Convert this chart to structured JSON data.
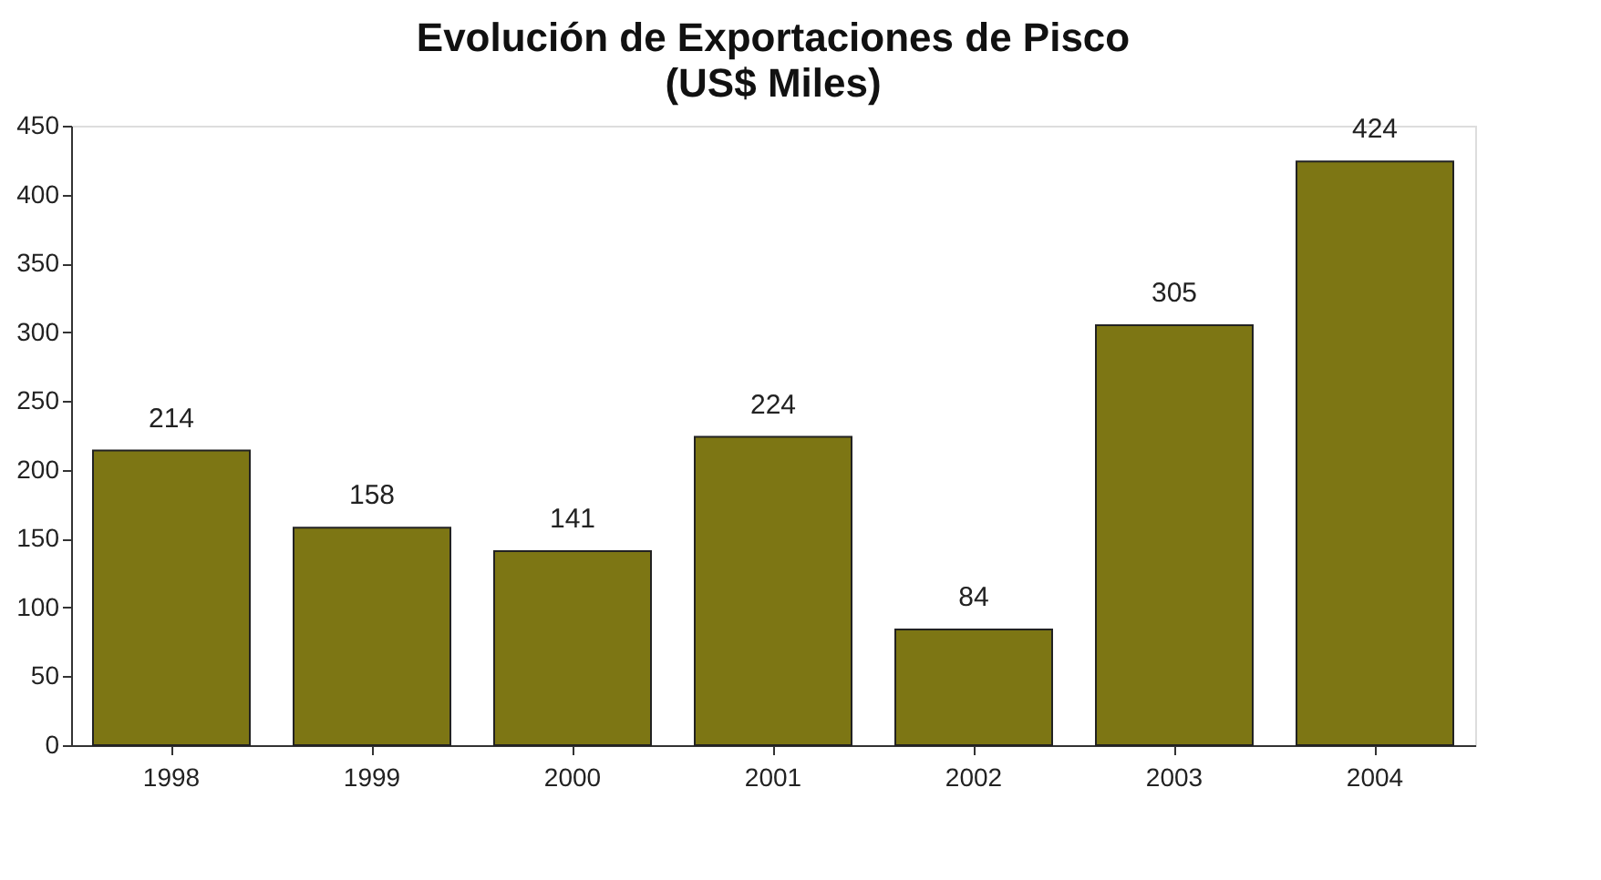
{
  "chart_data": {
    "type": "bar",
    "title": "Evolución de Exportaciones de Pisco",
    "subtitle": "(US$ Miles)",
    "categories": [
      "1998",
      "1999",
      "2000",
      "2001",
      "2002",
      "2003",
      "2004"
    ],
    "values": [
      214,
      158,
      141,
      224,
      84,
      305,
      424
    ],
    "color": "#7d7614",
    "ylim": [
      0,
      450
    ],
    "yticks": [
      0,
      50,
      100,
      150,
      200,
      250,
      300,
      350,
      400,
      450
    ],
    "grid": false,
    "data_labels": true
  }
}
